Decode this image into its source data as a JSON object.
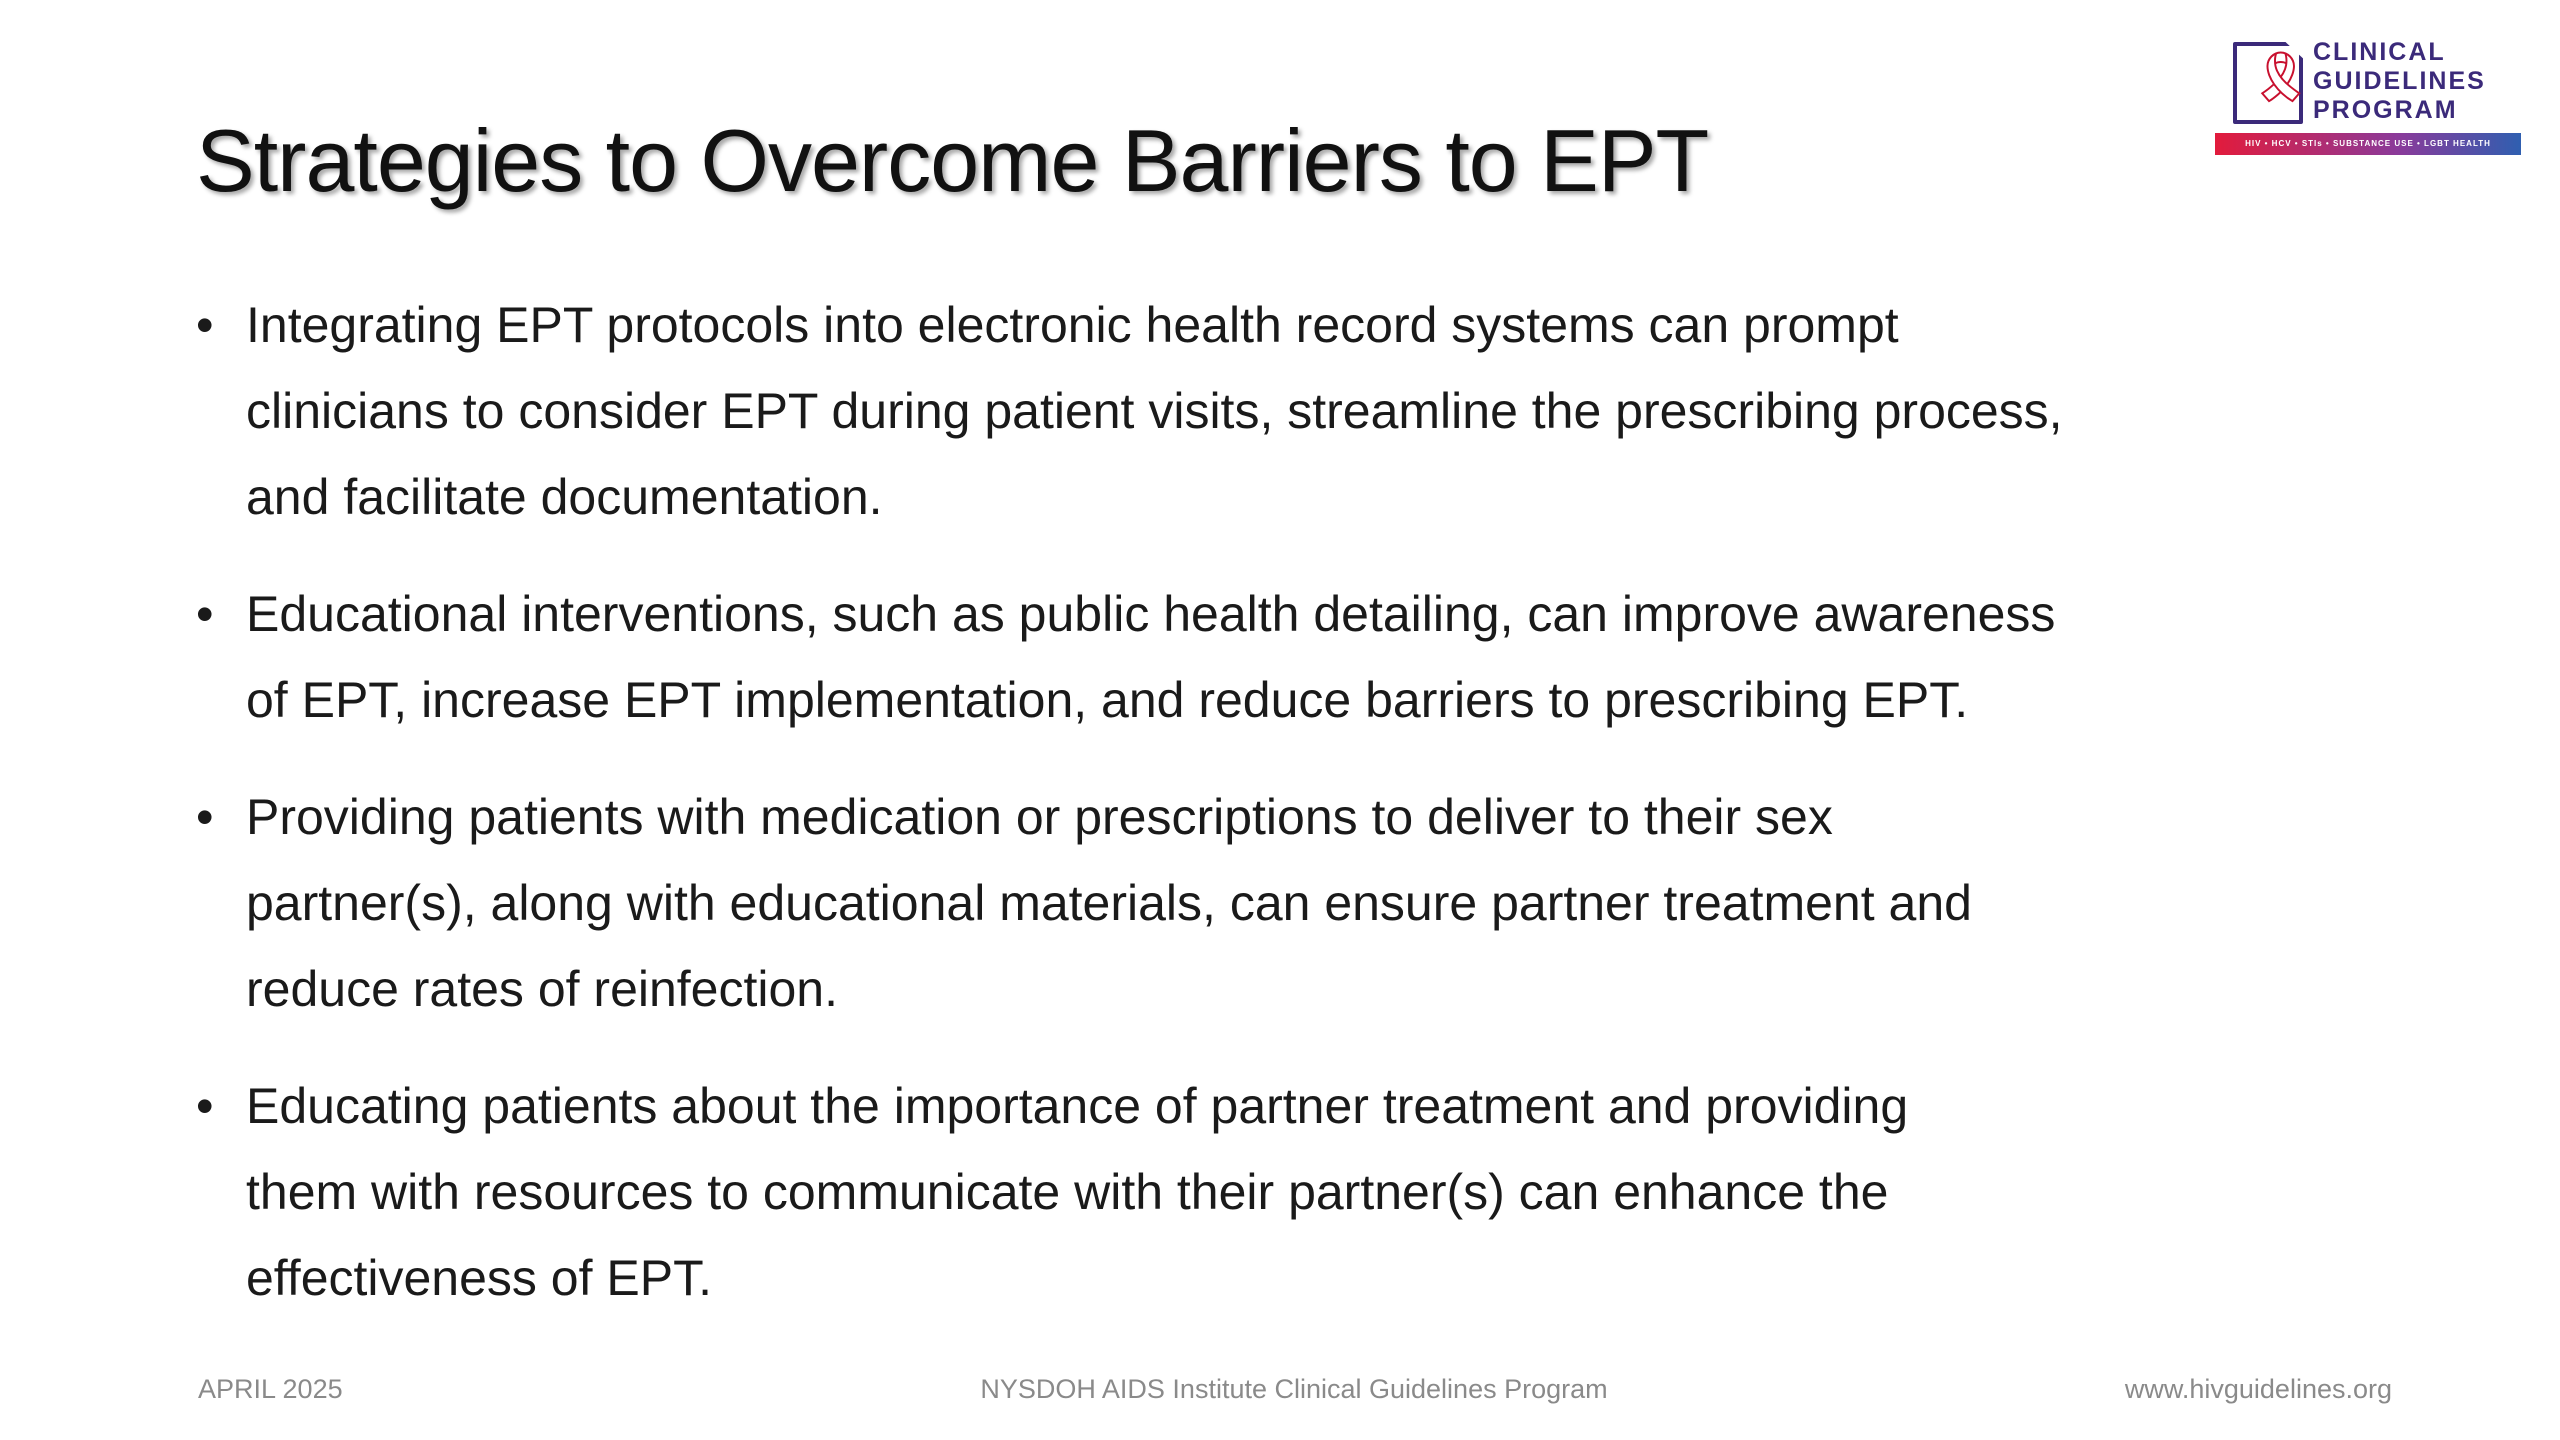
{
  "title": "Strategies to Overcome Barriers to EPT",
  "logo": {
    "line1": "CLINICAL",
    "line2": "GUIDELINES",
    "line3": "PROGRAM",
    "tagline": "HIV • HCV • STIs • SUBSTANCE USE • LGBT HEALTH"
  },
  "bullets": [
    {
      "lines": [
        "Integrating EPT protocols into electronic health record systems can prompt",
        "clinicians to consider EPT during patient visits, streamline the prescribing process,",
        "and facilitate documentation."
      ]
    },
    {
      "lines": [
        "Educational interventions, such as public health detailing, can improve awareness",
        "of EPT, increase EPT implementation, and reduce barriers to prescribing EPT."
      ]
    },
    {
      "lines": [
        "Providing patients with medication or prescriptions to deliver to their sex",
        "partner(s), along with educational materials, can ensure partner treatment and",
        "reduce rates of reinfection."
      ]
    },
    {
      "lines": [
        "Educating patients about the importance of partner treatment and providing",
        "them with resources to communicate with their partner(s) can enhance the",
        "effectiveness of EPT."
      ]
    }
  ],
  "footer": {
    "date": "APRIL 2025",
    "center": "NYSDOH AIDS Institute Clinical Guidelines Program",
    "url": "www.hivguidelines.org"
  }
}
